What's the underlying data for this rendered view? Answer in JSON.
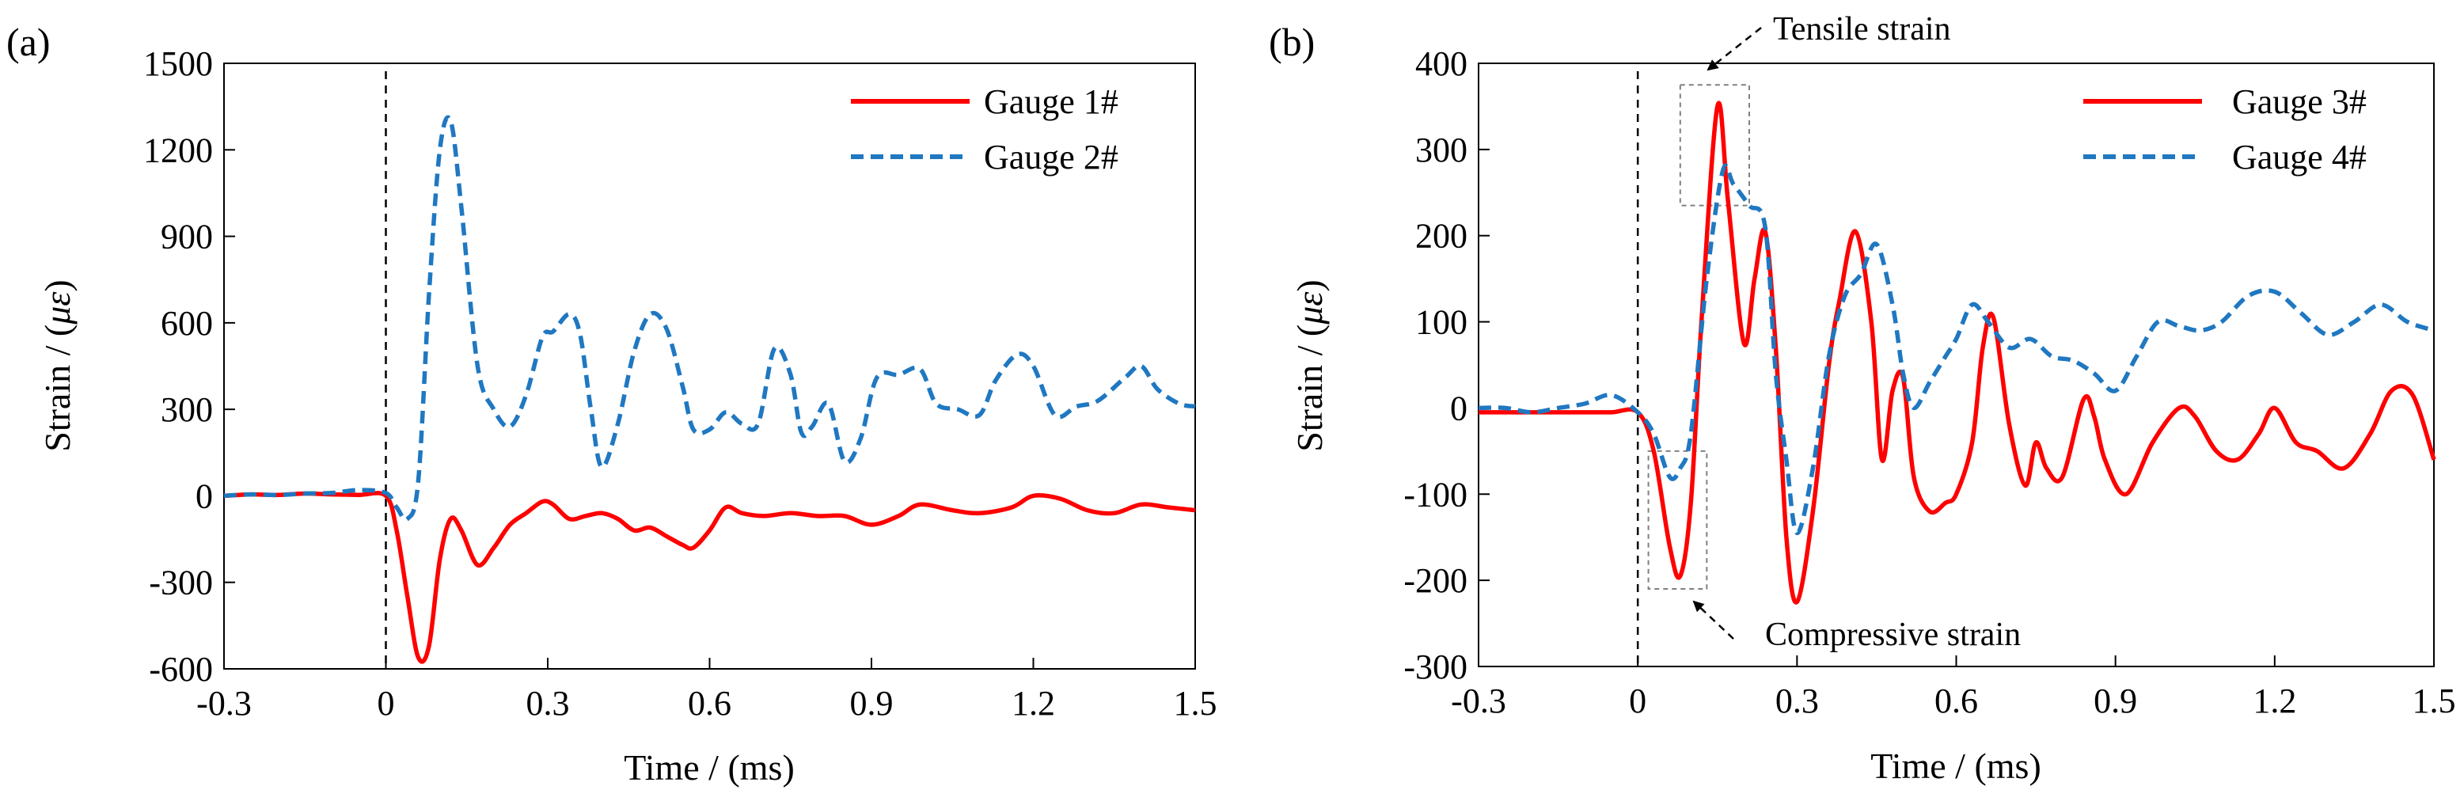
{
  "colors": {
    "series_red": "#ff0000",
    "series_blue": "#1f78c1",
    "axis": "#000000",
    "annotation_box": "#808080"
  },
  "chart_data": [
    {
      "panel_label": "(a)",
      "type": "line",
      "xlabel": "Time / (ms)",
      "ylabel_prefix": "Strain / (",
      "ylabel_unit": "με",
      "ylabel_suffix": ")",
      "xlim": [
        -0.3,
        1.5
      ],
      "ylim": [
        -600,
        1500
      ],
      "xticks": [
        -0.3,
        0,
        0.3,
        0.6,
        0.9,
        1.2,
        1.5
      ],
      "xtick_labels": [
        "-0.3",
        "0",
        "0.3",
        "0.6",
        "0.9",
        "1.2",
        "1.5"
      ],
      "yticks": [
        -600,
        -300,
        0,
        300,
        600,
        900,
        1200,
        1500
      ],
      "ytick_labels": [
        "-600",
        "-300",
        "0",
        "300",
        "600",
        "900",
        "1200",
        "1500"
      ],
      "grid": false,
      "legend_position": "top-right",
      "vline_x": 0,
      "series": [
        {
          "name": "Gauge 1#",
          "color": "#ff0000",
          "style": "solid",
          "x": [
            -0.3,
            -0.25,
            -0.2,
            -0.15,
            -0.1,
            -0.05,
            0,
            0.02,
            0.04,
            0.06,
            0.08,
            0.1,
            0.12,
            0.14,
            0.17,
            0.2,
            0.23,
            0.26,
            0.29,
            0.31,
            0.34,
            0.37,
            0.4,
            0.43,
            0.46,
            0.49,
            0.52,
            0.55,
            0.57,
            0.6,
            0.63,
            0.66,
            0.7,
            0.75,
            0.8,
            0.85,
            0.9,
            0.95,
            0.99,
            1.05,
            1.1,
            1.16,
            1.2,
            1.25,
            1.3,
            1.35,
            1.4,
            1.45,
            1.5
          ],
          "y": [
            0,
            5,
            3,
            8,
            5,
            3,
            0,
            -120,
            -350,
            -560,
            -520,
            -220,
            -80,
            -120,
            -240,
            -180,
            -100,
            -60,
            -20,
            -30,
            -80,
            -70,
            -60,
            -80,
            -120,
            -110,
            -140,
            -170,
            -180,
            -120,
            -40,
            -60,
            -70,
            -60,
            -70,
            -70,
            -100,
            -70,
            -30,
            -50,
            -60,
            -40,
            0,
            -10,
            -50,
            -60,
            -30,
            -40,
            -50
          ]
        },
        {
          "name": "Gauge 2#",
          "color": "#1f78c1",
          "style": "dashed",
          "x": [
            -0.3,
            -0.25,
            -0.2,
            -0.15,
            -0.1,
            -0.05,
            0,
            0.02,
            0.04,
            0.06,
            0.08,
            0.1,
            0.12,
            0.14,
            0.17,
            0.2,
            0.23,
            0.26,
            0.29,
            0.31,
            0.34,
            0.36,
            0.38,
            0.4,
            0.43,
            0.46,
            0.49,
            0.52,
            0.55,
            0.57,
            0.6,
            0.63,
            0.66,
            0.69,
            0.72,
            0.75,
            0.77,
            0.79,
            0.82,
            0.85,
            0.88,
            0.91,
            0.95,
            0.99,
            1.02,
            1.06,
            1.1,
            1.13,
            1.17,
            1.2,
            1.24,
            1.28,
            1.32,
            1.37,
            1.4,
            1.43,
            1.47,
            1.5
          ],
          "y": [
            0,
            5,
            3,
            8,
            10,
            20,
            10,
            -40,
            -80,
            50,
            700,
            1200,
            1300,
            1000,
            450,
            300,
            240,
            350,
            550,
            570,
            630,
            560,
            300,
            100,
            250,
            500,
            630,
            580,
            380,
            230,
            230,
            290,
            250,
            250,
            510,
            420,
            220,
            240,
            320,
            120,
            200,
            410,
            420,
            440,
            320,
            300,
            280,
            400,
            490,
            450,
            280,
            310,
            330,
            410,
            450,
            370,
            320,
            310
          ]
        }
      ]
    },
    {
      "panel_label": "(b)",
      "type": "line",
      "xlabel": "Time / (ms)",
      "ylabel_prefix": "Strain / (",
      "ylabel_unit": "με",
      "ylabel_suffix": ")",
      "xlim": [
        -0.3,
        1.5
      ],
      "ylim": [
        -300,
        400
      ],
      "xticks": [
        -0.3,
        0,
        0.3,
        0.6,
        0.9,
        1.2,
        1.5
      ],
      "xtick_labels": [
        "-0.3",
        "0",
        "0.3",
        "0.6",
        "0.9",
        "1.2",
        "1.5"
      ],
      "yticks": [
        -300,
        -200,
        -100,
        0,
        100,
        200,
        300,
        400
      ],
      "ytick_labels": [
        "-300",
        "-200",
        "-100",
        "0",
        "100",
        "200",
        "300",
        "400"
      ],
      "grid": false,
      "legend_position": "top-right",
      "vline_x": 0,
      "annotations": [
        {
          "text": "Tensile strain",
          "box_x": [
            0.08,
            0.21
          ],
          "box_y": [
            235,
            375
          ]
        },
        {
          "text": "Compressive strain",
          "box_x": [
            0.02,
            0.13
          ],
          "box_y": [
            -210,
            -50
          ]
        }
      ],
      "series": [
        {
          "name": "Gauge 3#",
          "color": "#ff0000",
          "style": "solid",
          "x": [
            -0.3,
            -0.25,
            -0.2,
            -0.15,
            -0.1,
            -0.05,
            0,
            0.03,
            0.06,
            0.08,
            0.1,
            0.12,
            0.15,
            0.17,
            0.2,
            0.22,
            0.24,
            0.26,
            0.28,
            0.3,
            0.33,
            0.36,
            0.38,
            0.41,
            0.44,
            0.46,
            0.48,
            0.5,
            0.52,
            0.55,
            0.58,
            0.6,
            0.63,
            0.65,
            0.67,
            0.7,
            0.73,
            0.75,
            0.77,
            0.8,
            0.84,
            0.86,
            0.88,
            0.92,
            0.97,
            1.02,
            1.05,
            1.09,
            1.13,
            1.17,
            1.2,
            1.24,
            1.28,
            1.33,
            1.38,
            1.42,
            1.46,
            1.5
          ],
          "y": [
            -5,
            -5,
            -5,
            -5,
            -5,
            -5,
            -5,
            -50,
            -160,
            -195,
            -110,
            100,
            350,
            240,
            75,
            150,
            205,
            70,
            -150,
            -225,
            -120,
            50,
            125,
            205,
            100,
            -60,
            20,
            35,
            -80,
            -120,
            -110,
            -100,
            -40,
            70,
            105,
            -20,
            -90,
            -40,
            -70,
            -80,
            10,
            -10,
            -60,
            -100,
            -40,
            0,
            -10,
            -50,
            -60,
            -30,
            0,
            -40,
            -50,
            -70,
            -30,
            20,
            15,
            -60
          ]
        },
        {
          "name": "Gauge 4#",
          "color": "#1f78c1",
          "style": "dashed",
          "x": [
            -0.3,
            -0.25,
            -0.2,
            -0.15,
            -0.1,
            -0.05,
            0,
            0.03,
            0.06,
            0.08,
            0.1,
            0.13,
            0.16,
            0.18,
            0.21,
            0.24,
            0.26,
            0.28,
            0.3,
            0.33,
            0.36,
            0.39,
            0.42,
            0.45,
            0.48,
            0.5,
            0.52,
            0.55,
            0.58,
            0.6,
            0.63,
            0.66,
            0.7,
            0.74,
            0.78,
            0.82,
            0.86,
            0.9,
            0.94,
            0.98,
            1.02,
            1.06,
            1.1,
            1.15,
            1.2,
            1.25,
            1.3,
            1.35,
            1.4,
            1.45,
            1.5
          ],
          "y": [
            0,
            0,
            -5,
            0,
            5,
            15,
            -5,
            -30,
            -80,
            -70,
            -30,
            150,
            275,
            260,
            235,
            210,
            40,
            -60,
            -145,
            -70,
            60,
            130,
            155,
            190,
            120,
            40,
            0,
            30,
            60,
            80,
            120,
            100,
            70,
            80,
            60,
            55,
            40,
            20,
            60,
            100,
            95,
            90,
            100,
            130,
            135,
            110,
            85,
            100,
            120,
            100,
            90
          ]
        }
      ]
    }
  ]
}
